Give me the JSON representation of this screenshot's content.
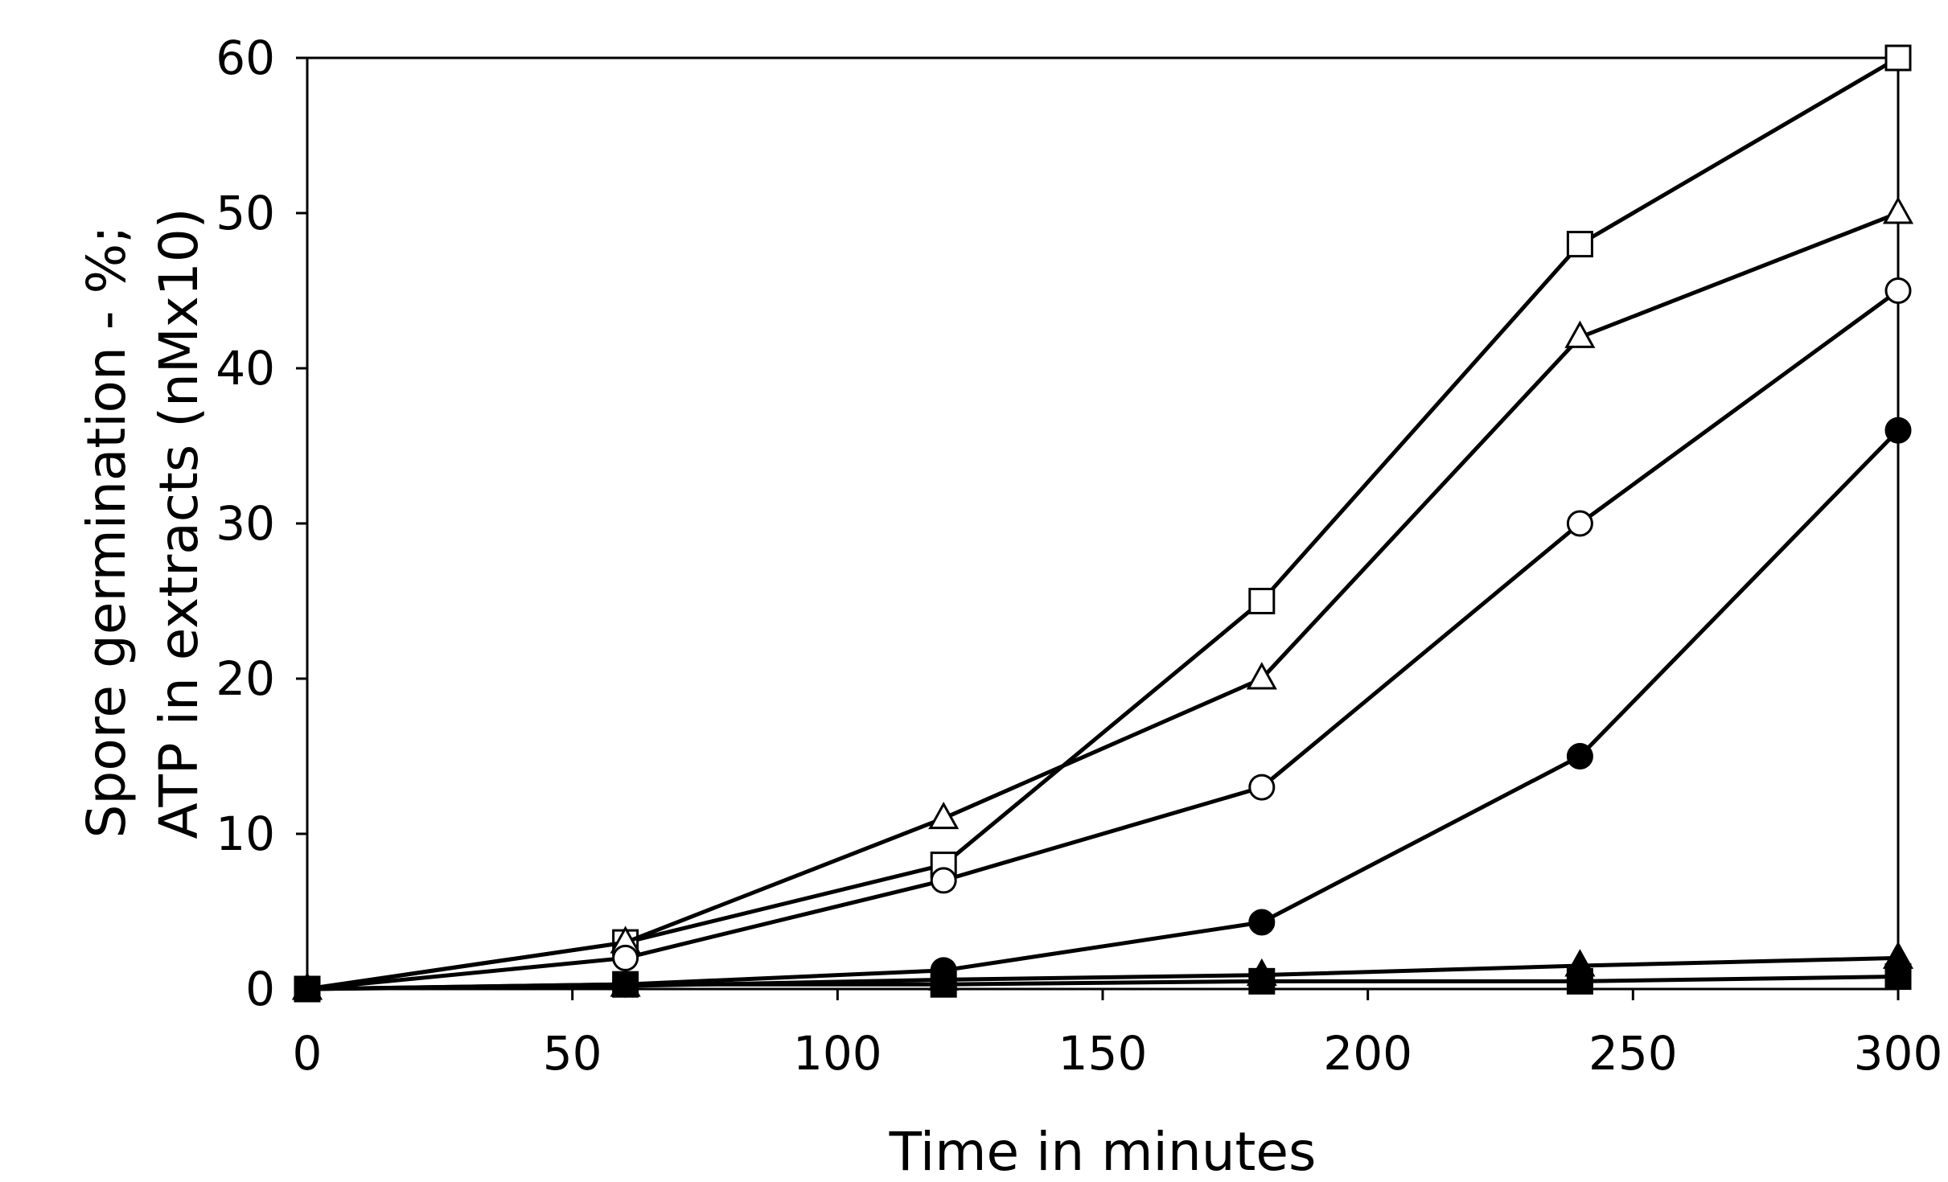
{
  "chart_data": {
    "type": "line",
    "xlabel": "Time in minutes",
    "ylabel": [
      "Spore germination - %;",
      "ATP in extracts (nMx10)"
    ],
    "xlim": [
      0,
      300
    ],
    "ylim": [
      0,
      60
    ],
    "x_ticks": [
      0,
      50,
      100,
      150,
      200,
      250,
      300
    ],
    "y_ticks": [
      0,
      10,
      20,
      30,
      40,
      50,
      60
    ],
    "grid": false,
    "legend": "none",
    "line_color": "#000000",
    "series": [
      {
        "marker": "square-open",
        "x": [
          0,
          60,
          120,
          180,
          240,
          300
        ],
        "y": [
          0,
          3,
          8,
          25,
          48,
          60
        ]
      },
      {
        "marker": "triangle-open",
        "x": [
          0,
          60,
          120,
          180,
          240,
          300
        ],
        "y": [
          0,
          3,
          11,
          20,
          42,
          50
        ]
      },
      {
        "marker": "circle-open",
        "x": [
          0,
          60,
          120,
          180,
          240,
          300
        ],
        "y": [
          0,
          2,
          7,
          13,
          30,
          45
        ]
      },
      {
        "marker": "circle-filled",
        "x": [
          0,
          60,
          120,
          180,
          240,
          300
        ],
        "y": [
          0,
          0.3,
          1.2,
          4.3,
          15,
          36
        ]
      },
      {
        "marker": "triangle-filled",
        "x": [
          0,
          60,
          120,
          180,
          240,
          300
        ],
        "y": [
          0,
          0.2,
          0.6,
          0.9,
          1.5,
          2
        ]
      },
      {
        "marker": "square-filled",
        "x": [
          0,
          60,
          120,
          180,
          240,
          300
        ],
        "y": [
          0,
          0.3,
          0.3,
          0.5,
          0.5,
          0.8
        ]
      }
    ]
  }
}
